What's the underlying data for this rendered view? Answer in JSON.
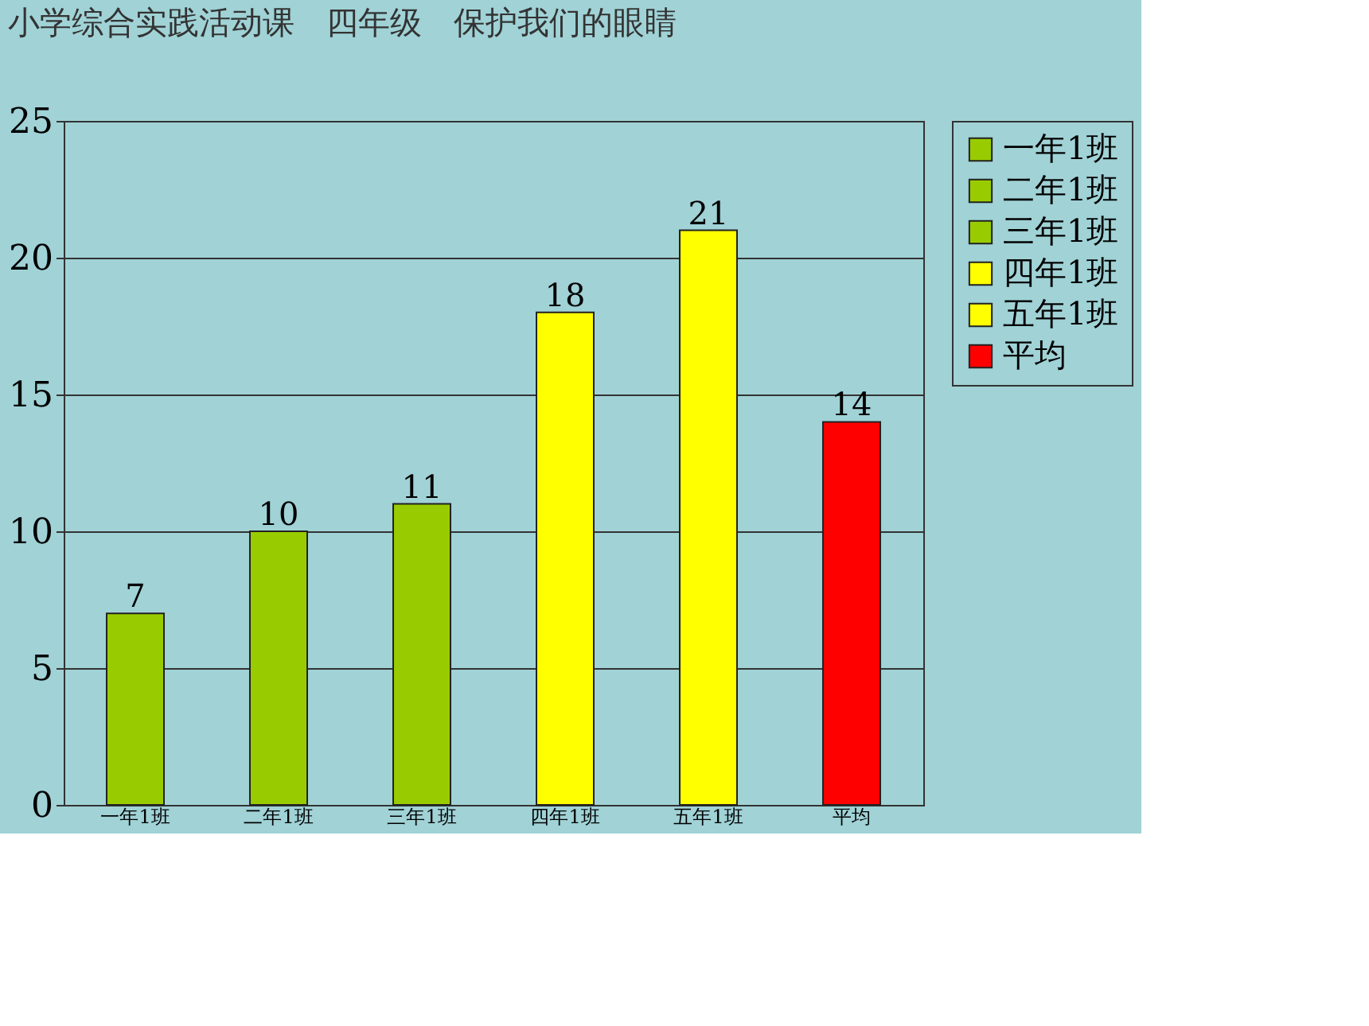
{
  "chart_data": {
    "type": "bar",
    "title": "小学综合实践活动课　四年级　保护我们的眼睛",
    "categories": [
      "一年1班",
      "二年1班",
      "三年1班",
      "四年1班",
      "五年1班",
      "平均"
    ],
    "series": [
      {
        "name": "一年1班",
        "color": "#99cc00",
        "values": [
          7,
          null,
          null,
          null,
          null,
          null
        ]
      },
      {
        "name": "二年1班",
        "color": "#99cc00",
        "values": [
          null,
          10,
          null,
          null,
          null,
          null
        ]
      },
      {
        "name": "三年1班",
        "color": "#99cc00",
        "values": [
          null,
          null,
          11,
          null,
          null,
          null
        ]
      },
      {
        "name": "四年1班",
        "color": "#ffff00",
        "values": [
          null,
          null,
          null,
          18,
          null,
          null
        ]
      },
      {
        "name": "五年1班",
        "color": "#ffff00",
        "values": [
          null,
          null,
          null,
          null,
          21,
          null
        ]
      },
      {
        "name": "平均",
        "color": "#ff0000",
        "values": [
          null,
          null,
          null,
          null,
          null,
          14
        ]
      }
    ],
    "ylim": [
      0,
      25
    ],
    "yticks": [
      0,
      5,
      10,
      15,
      20,
      25
    ],
    "grid": "y",
    "legend": "right",
    "data_labels": true
  }
}
